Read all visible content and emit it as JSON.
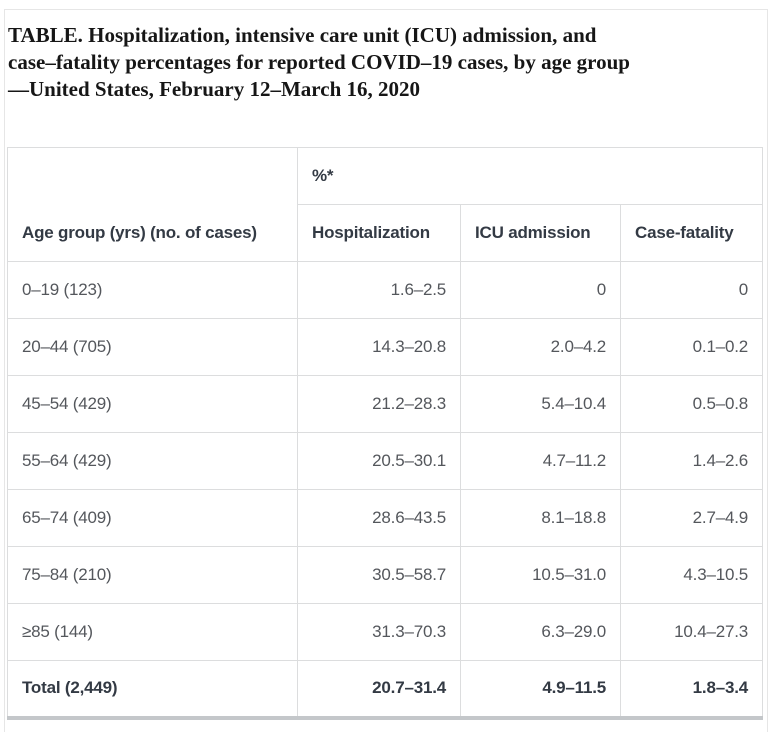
{
  "page": {
    "caption_lines": [
      "TABLE. Hospitalization, intensive care unit (ICU) admission, and",
      "case–fatality percentages for reported COVID–19 cases, by age group",
      "—United States, February 12–March 16, 2020"
    ]
  },
  "table": {
    "row_dimension_header": "Age group (yrs) (no. of cases)",
    "group_header": "%*",
    "columns": [
      "Hospitalization",
      "ICU admission",
      "Case-fatality"
    ],
    "rows": [
      [
        "0–19 (123)",
        "1.6–2.5",
        "0",
        "0"
      ],
      [
        "20–44 (705)",
        "14.3–20.8",
        "2.0–4.2",
        "0.1–0.2"
      ],
      [
        "45–54 (429)",
        "21.2–28.3",
        "5.4–10.4",
        "0.5–0.8"
      ],
      [
        "55–64 (429)",
        "20.5–30.1",
        "4.7–11.2",
        "1.4–2.6"
      ],
      [
        "65–74 (409)",
        "28.6–43.5",
        "8.1–18.8",
        "2.7–4.9"
      ],
      [
        "75–84 (210)",
        "30.5–58.7",
        "10.5–31.0",
        "4.3–10.5"
      ],
      [
        "≥85 (144)",
        "31.3–70.3",
        "6.3–29.0",
        "10.4–27.3"
      ]
    ],
    "total": [
      "Total (2,449)",
      "20.7–31.4",
      "4.9–11.5",
      "1.8–3.4"
    ]
  }
}
